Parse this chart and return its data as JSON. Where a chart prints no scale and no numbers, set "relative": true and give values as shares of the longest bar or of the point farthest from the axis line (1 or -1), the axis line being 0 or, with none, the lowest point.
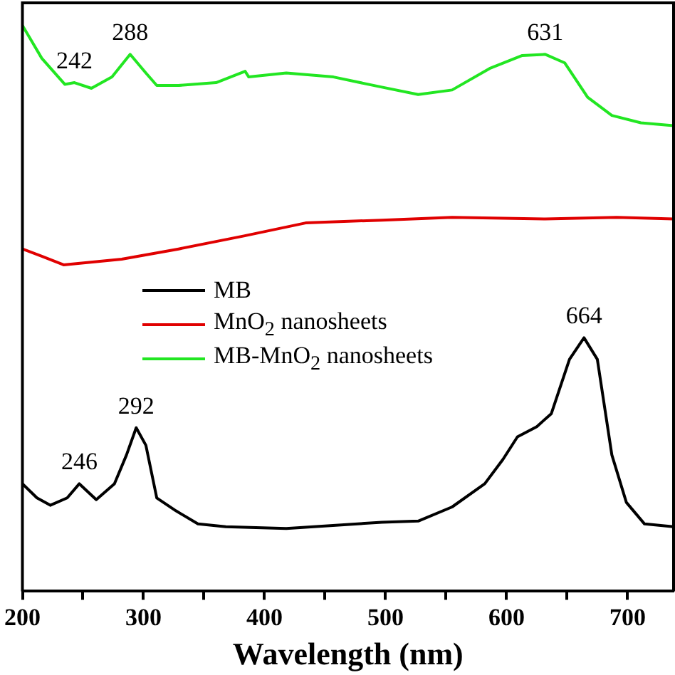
{
  "chart_data": {
    "type": "line",
    "xlabel": "Wavelength (nm)",
    "relative": true,
    "xlim": [
      200,
      738
    ],
    "xticks": [
      200,
      {
        "value": 250,
        "label": null
      },
      300,
      {
        "value": 350,
        "label": null
      },
      400,
      {
        "value": 450,
        "label": null
      },
      500,
      {
        "value": 550,
        "label": null
      },
      600,
      {
        "value": 650,
        "label": null
      },
      700
    ],
    "legend": "left",
    "marker": "none",
    "line_style": "solid",
    "series": [
      {
        "name": "MB",
        "color": "#000000",
        "x": [
          200,
          212,
          223,
          237,
          247,
          261,
          276,
          286,
          294,
          302,
          311,
          327,
          345,
          368,
          418,
          497,
          527,
          555,
          582,
          597,
          609,
          625,
          637,
          652,
          664,
          675,
          687,
          699,
          714,
          738
        ],
        "values": [
          0.19,
          0.165,
          0.152,
          0.165,
          0.19,
          0.162,
          0.19,
          0.241,
          0.289,
          0.258,
          0.165,
          0.142,
          0.119,
          0.114,
          0.111,
          0.122,
          0.124,
          0.149,
          0.19,
          0.233,
          0.273,
          0.291,
          0.314,
          0.41,
          0.448,
          0.41,
          0.241,
          0.157,
          0.119,
          0.114
        ]
      },
      {
        "name": "MnO$_{2}$ nanosheets",
        "color": "#e00000",
        "x": [
          200,
          216,
          234,
          282,
          329,
          383,
          434,
          497,
          555,
          632,
          691,
          738
        ],
        "values": [
          0.605,
          0.592,
          0.577,
          0.587,
          0.605,
          0.628,
          0.651,
          0.656,
          0.661,
          0.658,
          0.661,
          0.658
        ]
      },
      {
        "name": "MB-MnO$_{2}$ nanosheets",
        "color": "#22e622",
        "x": [
          200,
          216,
          235,
          243,
          257,
          274,
          289,
          302,
          311,
          329,
          360,
          384,
          387,
          418,
          457,
          497,
          527,
          555,
          586,
          613,
          632,
          648,
          667,
          687,
          711,
          738
        ],
        "values": [
          1.0,
          0.942,
          0.896,
          0.899,
          0.889,
          0.909,
          0.949,
          0.916,
          0.894,
          0.894,
          0.899,
          0.919,
          0.909,
          0.916,
          0.909,
          0.891,
          0.878,
          0.886,
          0.924,
          0.947,
          0.949,
          0.934,
          0.873,
          0.841,
          0.828,
          0.823
        ]
      }
    ],
    "annotations": [
      {
        "text": "242",
        "x": 243,
        "y": 0.899
      },
      {
        "text": "288",
        "x": 289,
        "y": 0.949
      },
      {
        "text": "631",
        "x": 632,
        "y": 0.949
      },
      {
        "text": "246",
        "x": 247,
        "y": 0.19
      },
      {
        "text": "292",
        "x": 294,
        "y": 0.289
      },
      {
        "text": "664",
        "x": 664,
        "y": 0.448
      }
    ]
  }
}
